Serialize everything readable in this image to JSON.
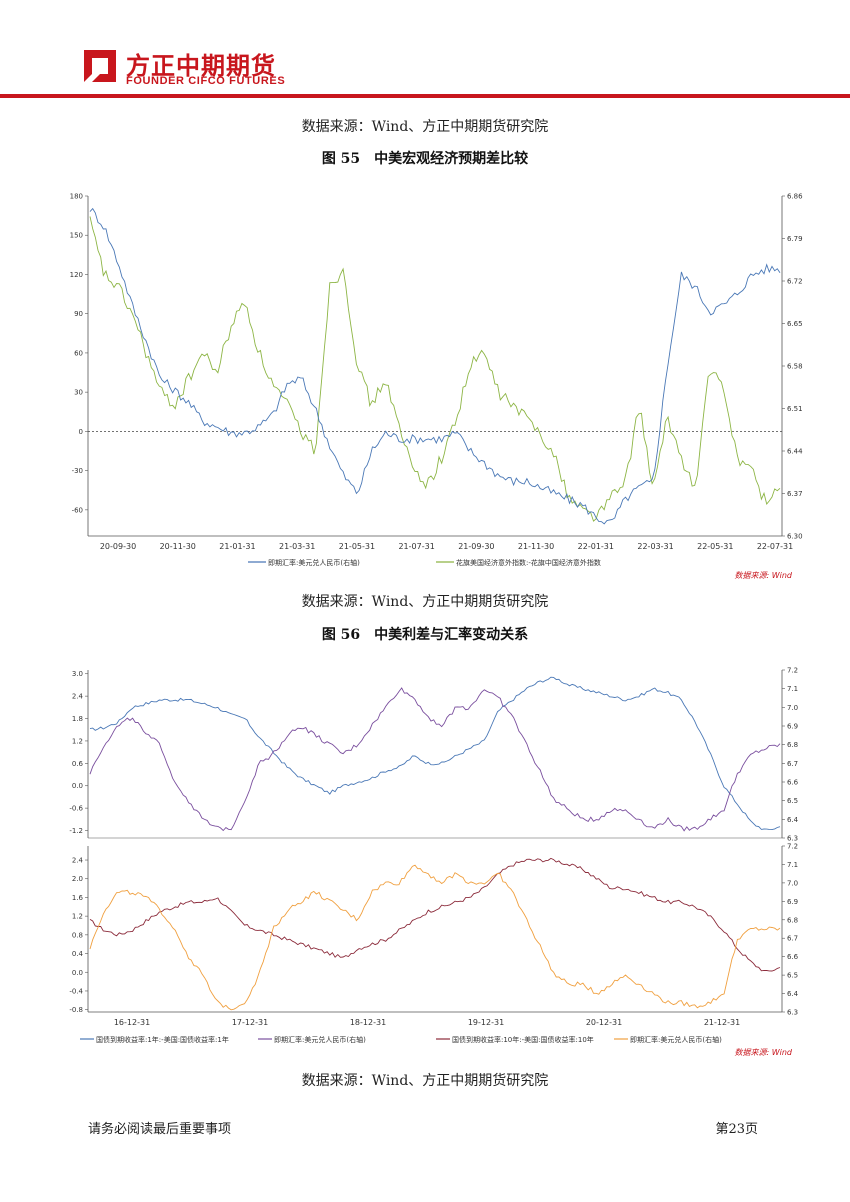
{
  "header": {
    "company_cn": "方正中期期货",
    "company_en": "FOUNDER CIFCO FUTURES"
  },
  "colors": {
    "brand": "#c8161d",
    "blue": "#4a78b6",
    "green": "#8db545",
    "purple": "#7a4f9e",
    "maroon": "#8b2a3a",
    "orange": "#f0a040"
  },
  "source_top": "数据来源：Wind、方正中期期货研究院",
  "figure55": {
    "title": "图 55　中美宏观经济预期差比较",
    "source": "数据来源：Wind、方正中期期货研究院",
    "chart_data": {
      "type": "line",
      "title": "中美宏观经济预期差比较",
      "x_ticks": [
        "20-09-30",
        "20-11-30",
        "21-01-31",
        "21-03-31",
        "21-05-31",
        "21-07-31",
        "21-09-30",
        "21-11-30",
        "22-01-31",
        "22-03-31",
        "22-05-31",
        "22-07-31"
      ],
      "y_left_ticks": [
        "180",
        "150",
        "120",
        "90",
        "60",
        "30",
        "0",
        "-30",
        "-60"
      ],
      "y_left_range": [
        -80,
        180
      ],
      "y_right_ticks": [
        "6.86",
        "6.79",
        "6.72",
        "6.65",
        "6.58",
        "6.51",
        "6.44",
        "6.37",
        "6.30"
      ],
      "y_right_range": [
        6.3,
        6.86
      ],
      "series": [
        {
          "name": "即期汇率:美元兑人民币(右轴)",
          "axis": "right",
          "values": [
            6.84,
            6.81,
            6.75,
            6.68,
            6.62,
            6.56,
            6.54,
            6.52,
            6.49,
            6.48,
            6.47,
            6.47,
            6.48,
            6.5,
            6.55,
            6.56,
            6.51,
            6.45,
            6.4,
            6.37,
            6.44,
            6.47,
            6.46,
            6.46,
            6.46,
            6.46,
            6.47,
            6.44,
            6.42,
            6.4,
            6.39,
            6.39,
            6.38,
            6.37,
            6.36,
            6.35,
            6.33,
            6.32,
            6.36,
            6.38,
            6.39,
            6.58,
            6.73,
            6.71,
            6.67,
            6.68,
            6.7,
            6.73,
            6.74,
            6.74
          ]
        },
        {
          "name": "花旗美国经济意外指数:-花旗中国经济意外指数",
          "axis": "left",
          "values": [
            160,
            120,
            110,
            90,
            60,
            30,
            20,
            40,
            60,
            45,
            80,
            100,
            60,
            35,
            20,
            0,
            -15,
            110,
            125,
            50,
            20,
            40,
            0,
            -30,
            -40,
            -20,
            10,
            50,
            60,
            30,
            20,
            10,
            0,
            -20,
            -50,
            -60,
            -65,
            -50,
            -40,
            20,
            -45,
            10,
            -20,
            -45,
            50,
            30,
            -20,
            -30,
            -55,
            -40
          ]
        }
      ]
    }
  },
  "figure56": {
    "title": "图 56　中美利差与汇率变动关系",
    "source": "数据来源：Wind、方正中期期货研究院",
    "chart_data": [
      {
        "type": "line",
        "x_ticks": [],
        "y_left_ticks": [
          "3.0",
          "2.4",
          "1.8",
          "1.2",
          "0.6",
          "0.0",
          "-0.6",
          "-1.2"
        ],
        "y_left_range": [
          -1.4,
          3.1
        ],
        "y_right_ticks": [
          "6.3",
          "6.4",
          "6.5",
          "6.6",
          "6.7",
          "6.8",
          "6.9",
          "7.0",
          "7.1",
          "7.2"
        ],
        "y_right_range": [
          6.3,
          7.2
        ],
        "series": [
          {
            "name": "国债到期收益率:1年:-美国:国债收益率:1年",
            "axis": "left",
            "values": [
              1.5,
              1.55,
              1.7,
              2.1,
              2.2,
              2.3,
              2.3,
              2.3,
              2.2,
              2.1,
              1.9,
              1.8,
              1.3,
              0.9,
              0.5,
              0.2,
              0.0,
              -0.2,
              0.0,
              0.1,
              0.2,
              0.4,
              0.5,
              0.8,
              0.6,
              0.6,
              0.8,
              1.0,
              1.2,
              2.0,
              2.3,
              2.6,
              2.8,
              2.9,
              2.7,
              2.6,
              2.5,
              2.4,
              2.3,
              2.4,
              2.6,
              2.5,
              2.3,
              1.7,
              0.9,
              0.0,
              -0.5,
              -1.0,
              -1.2,
              -1.1
            ]
          },
          {
            "name": "即期汇率:美元兑人民币(右轴)",
            "axis": "right",
            "values": [
              6.65,
              6.8,
              6.9,
              6.95,
              6.85,
              6.8,
              6.6,
              6.5,
              6.4,
              6.35,
              6.35,
              6.5,
              6.7,
              6.75,
              6.85,
              6.9,
              6.85,
              6.8,
              6.75,
              6.8,
              6.9,
              7.0,
              7.1,
              7.05,
              6.95,
              6.9,
              7.0,
              7.0,
              7.1,
              7.05,
              6.95,
              6.8,
              6.65,
              6.5,
              6.45,
              6.4,
              6.4,
              6.45,
              6.45,
              6.4,
              6.35,
              6.4,
              6.35,
              6.35,
              6.4,
              6.45,
              6.65,
              6.75,
              6.78,
              6.8
            ]
          }
        ]
      },
      {
        "type": "line",
        "x_ticks": [
          "16-12-31",
          "17-12-31",
          "18-12-31",
          "19-12-31",
          "20-12-31",
          "21-12-31"
        ],
        "y_left_ticks": [
          "2.4",
          "2.0",
          "1.6",
          "1.2",
          "0.8",
          "0.4",
          "0.0",
          "-0.4",
          "-0.8"
        ],
        "y_left_range": [
          -0.85,
          2.7
        ],
        "y_right_ticks": [
          "6.3",
          "6.4",
          "6.5",
          "6.6",
          "6.7",
          "6.8",
          "6.9",
          "7.0",
          "7.1",
          "7.2"
        ],
        "y_right_range": [
          6.3,
          7.2
        ],
        "series": [
          {
            "name": "国债到期收益率:10年:-美国:国债收益率:10年",
            "axis": "left",
            "values": [
              1.1,
              0.9,
              0.8,
              0.9,
              1.1,
              1.3,
              1.4,
              1.5,
              1.5,
              1.6,
              1.3,
              1.0,
              0.9,
              0.8,
              0.7,
              0.6,
              0.5,
              0.4,
              0.3,
              0.5,
              0.6,
              0.7,
              0.9,
              1.1,
              1.3,
              1.4,
              1.5,
              1.6,
              1.8,
              2.1,
              2.3,
              2.4,
              2.4,
              2.4,
              2.3,
              2.2,
              2.0,
              1.8,
              1.8,
              1.7,
              1.6,
              1.5,
              1.5,
              1.4,
              1.2,
              0.9,
              0.5,
              0.2,
              0.0,
              0.1
            ]
          },
          {
            "name": "即期汇率:美元兑人民币(右轴)",
            "axis": "right",
            "values": [
              6.65,
              6.85,
              6.95,
              6.95,
              6.92,
              6.85,
              6.75,
              6.6,
              6.5,
              6.35,
              6.32,
              6.35,
              6.5,
              6.75,
              6.85,
              6.9,
              6.95,
              6.9,
              6.85,
              6.8,
              6.95,
              7.0,
              7.0,
              7.1,
              7.05,
              7.0,
              7.05,
              7.0,
              7.0,
              7.05,
              6.95,
              6.8,
              6.65,
              6.5,
              6.45,
              6.45,
              6.4,
              6.45,
              6.5,
              6.45,
              6.4,
              6.35,
              6.35,
              6.33,
              6.35,
              6.4,
              6.7,
              6.75,
              6.75,
              6.75
            ]
          }
        ]
      }
    ],
    "wind_label": "数据来源: Wind"
  },
  "figure55_wind_label": "数据来源: Wind",
  "footer": {
    "left": "请务必阅读最后重要事项",
    "right": "第23页"
  }
}
